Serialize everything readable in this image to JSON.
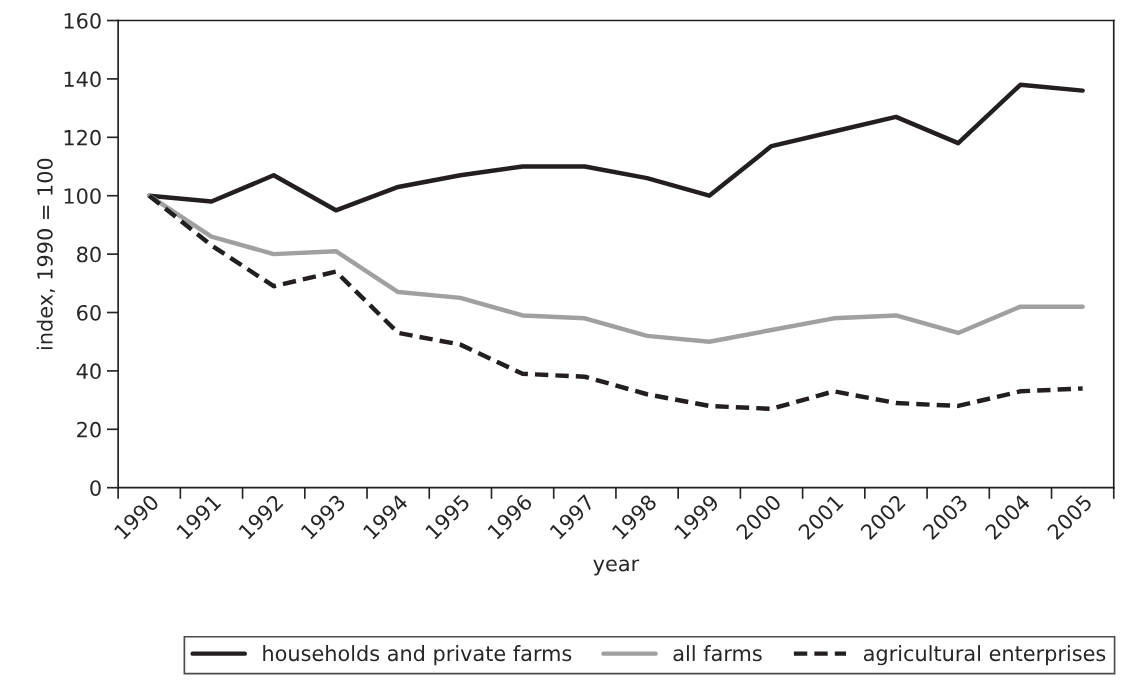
{
  "chart_data": {
    "type": "line",
    "xlabel": "year",
    "ylabel": "index, 1990 = 100",
    "categories": [
      "1990",
      "1991",
      "1992",
      "1993",
      "1994",
      "1995",
      "1996",
      "1997",
      "1998",
      "1999",
      "2000",
      "2001",
      "2002",
      "2003",
      "2004",
      "2005"
    ],
    "series": [
      {
        "name": "households and private farms",
        "color": "#231f20",
        "line_style": "solid",
        "values": [
          100,
          98,
          107,
          95,
          103,
          107,
          110,
          110,
          106,
          100,
          117,
          122,
          127,
          118,
          138,
          136
        ]
      },
      {
        "name": "all farms",
        "color": "#a0a0a0",
        "line_style": "solid",
        "values": [
          100,
          86,
          80,
          81,
          67,
          65,
          59,
          58,
          52,
          50,
          54,
          58,
          59,
          53,
          62,
          62
        ]
      },
      {
        "name": "agricultural enterprises",
        "color": "#231f20",
        "line_style": "dashed",
        "values": [
          100,
          83,
          69,
          74,
          53,
          49,
          39,
          38,
          32,
          28,
          27,
          33,
          29,
          28,
          33,
          34
        ]
      }
    ],
    "ylim": [
      0,
      160
    ],
    "yticks": [
      0,
      20,
      40,
      60,
      80,
      100,
      120,
      140,
      160
    ],
    "grid": false,
    "legend": "bottom",
    "marker": "none"
  }
}
